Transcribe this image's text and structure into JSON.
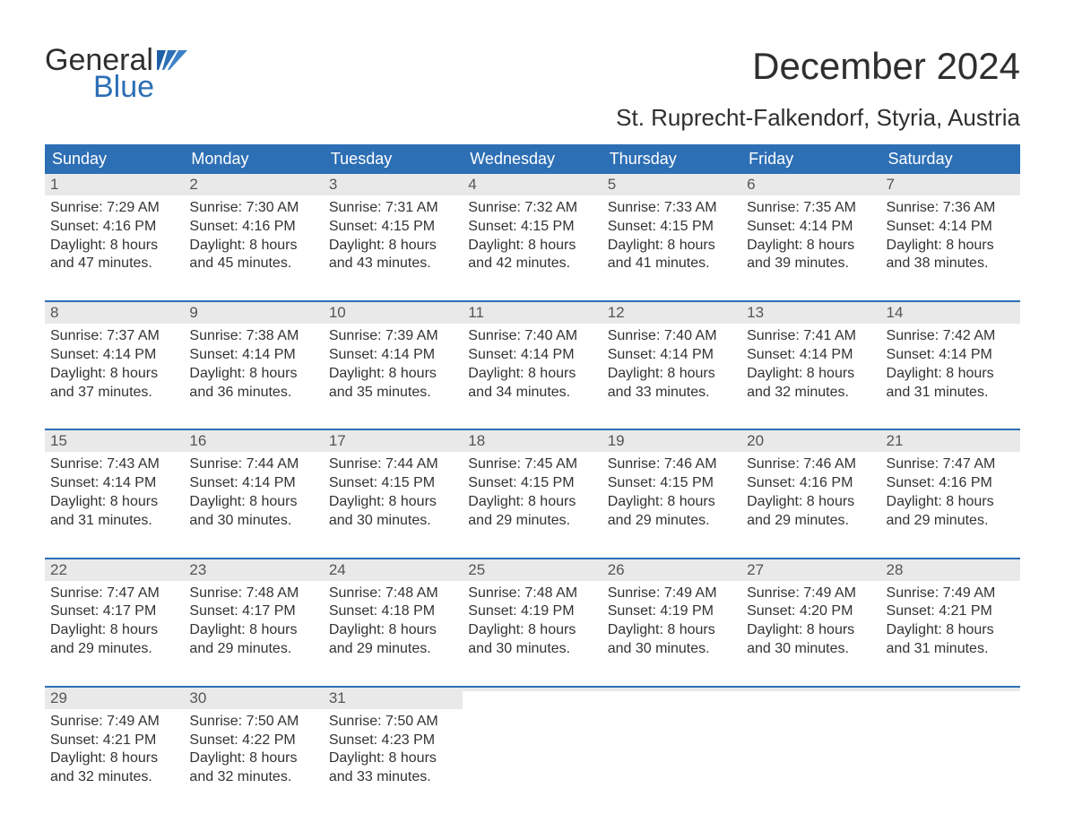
{
  "logo": {
    "text_top": "General",
    "text_bottom": "Blue"
  },
  "header": {
    "month_title": "December 2024",
    "location": "St. Ruprecht-Falkendorf, Styria, Austria"
  },
  "calendar": {
    "day_names": [
      "Sunday",
      "Monday",
      "Tuesday",
      "Wednesday",
      "Thursday",
      "Friday",
      "Saturday"
    ],
    "colors": {
      "header_bg": "#2d6fb5",
      "header_text": "#ffffff",
      "daynum_bg": "#e9e9e9",
      "daynum_text": "#555555",
      "body_text": "#333333",
      "rule": "#2d6fb5",
      "page_bg": "#ffffff"
    },
    "weeks": [
      [
        {
          "num": "1",
          "sunrise": "Sunrise: 7:29 AM",
          "sunset": "Sunset: 4:16 PM",
          "d1": "Daylight: 8 hours",
          "d2": "and 47 minutes."
        },
        {
          "num": "2",
          "sunrise": "Sunrise: 7:30 AM",
          "sunset": "Sunset: 4:16 PM",
          "d1": "Daylight: 8 hours",
          "d2": "and 45 minutes."
        },
        {
          "num": "3",
          "sunrise": "Sunrise: 7:31 AM",
          "sunset": "Sunset: 4:15 PM",
          "d1": "Daylight: 8 hours",
          "d2": "and 43 minutes."
        },
        {
          "num": "4",
          "sunrise": "Sunrise: 7:32 AM",
          "sunset": "Sunset: 4:15 PM",
          "d1": "Daylight: 8 hours",
          "d2": "and 42 minutes."
        },
        {
          "num": "5",
          "sunrise": "Sunrise: 7:33 AM",
          "sunset": "Sunset: 4:15 PM",
          "d1": "Daylight: 8 hours",
          "d2": "and 41 minutes."
        },
        {
          "num": "6",
          "sunrise": "Sunrise: 7:35 AM",
          "sunset": "Sunset: 4:14 PM",
          "d1": "Daylight: 8 hours",
          "d2": "and 39 minutes."
        },
        {
          "num": "7",
          "sunrise": "Sunrise: 7:36 AM",
          "sunset": "Sunset: 4:14 PM",
          "d1": "Daylight: 8 hours",
          "d2": "and 38 minutes."
        }
      ],
      [
        {
          "num": "8",
          "sunrise": "Sunrise: 7:37 AM",
          "sunset": "Sunset: 4:14 PM",
          "d1": "Daylight: 8 hours",
          "d2": "and 37 minutes."
        },
        {
          "num": "9",
          "sunrise": "Sunrise: 7:38 AM",
          "sunset": "Sunset: 4:14 PM",
          "d1": "Daylight: 8 hours",
          "d2": "and 36 minutes."
        },
        {
          "num": "10",
          "sunrise": "Sunrise: 7:39 AM",
          "sunset": "Sunset: 4:14 PM",
          "d1": "Daylight: 8 hours",
          "d2": "and 35 minutes."
        },
        {
          "num": "11",
          "sunrise": "Sunrise: 7:40 AM",
          "sunset": "Sunset: 4:14 PM",
          "d1": "Daylight: 8 hours",
          "d2": "and 34 minutes."
        },
        {
          "num": "12",
          "sunrise": "Sunrise: 7:40 AM",
          "sunset": "Sunset: 4:14 PM",
          "d1": "Daylight: 8 hours",
          "d2": "and 33 minutes."
        },
        {
          "num": "13",
          "sunrise": "Sunrise: 7:41 AM",
          "sunset": "Sunset: 4:14 PM",
          "d1": "Daylight: 8 hours",
          "d2": "and 32 minutes."
        },
        {
          "num": "14",
          "sunrise": "Sunrise: 7:42 AM",
          "sunset": "Sunset: 4:14 PM",
          "d1": "Daylight: 8 hours",
          "d2": "and 31 minutes."
        }
      ],
      [
        {
          "num": "15",
          "sunrise": "Sunrise: 7:43 AM",
          "sunset": "Sunset: 4:14 PM",
          "d1": "Daylight: 8 hours",
          "d2": "and 31 minutes."
        },
        {
          "num": "16",
          "sunrise": "Sunrise: 7:44 AM",
          "sunset": "Sunset: 4:14 PM",
          "d1": "Daylight: 8 hours",
          "d2": "and 30 minutes."
        },
        {
          "num": "17",
          "sunrise": "Sunrise: 7:44 AM",
          "sunset": "Sunset: 4:15 PM",
          "d1": "Daylight: 8 hours",
          "d2": "and 30 minutes."
        },
        {
          "num": "18",
          "sunrise": "Sunrise: 7:45 AM",
          "sunset": "Sunset: 4:15 PM",
          "d1": "Daylight: 8 hours",
          "d2": "and 29 minutes."
        },
        {
          "num": "19",
          "sunrise": "Sunrise: 7:46 AM",
          "sunset": "Sunset: 4:15 PM",
          "d1": "Daylight: 8 hours",
          "d2": "and 29 minutes."
        },
        {
          "num": "20",
          "sunrise": "Sunrise: 7:46 AM",
          "sunset": "Sunset: 4:16 PM",
          "d1": "Daylight: 8 hours",
          "d2": "and 29 minutes."
        },
        {
          "num": "21",
          "sunrise": "Sunrise: 7:47 AM",
          "sunset": "Sunset: 4:16 PM",
          "d1": "Daylight: 8 hours",
          "d2": "and 29 minutes."
        }
      ],
      [
        {
          "num": "22",
          "sunrise": "Sunrise: 7:47 AM",
          "sunset": "Sunset: 4:17 PM",
          "d1": "Daylight: 8 hours",
          "d2": "and 29 minutes."
        },
        {
          "num": "23",
          "sunrise": "Sunrise: 7:48 AM",
          "sunset": "Sunset: 4:17 PM",
          "d1": "Daylight: 8 hours",
          "d2": "and 29 minutes."
        },
        {
          "num": "24",
          "sunrise": "Sunrise: 7:48 AM",
          "sunset": "Sunset: 4:18 PM",
          "d1": "Daylight: 8 hours",
          "d2": "and 29 minutes."
        },
        {
          "num": "25",
          "sunrise": "Sunrise: 7:48 AM",
          "sunset": "Sunset: 4:19 PM",
          "d1": "Daylight: 8 hours",
          "d2": "and 30 minutes."
        },
        {
          "num": "26",
          "sunrise": "Sunrise: 7:49 AM",
          "sunset": "Sunset: 4:19 PM",
          "d1": "Daylight: 8 hours",
          "d2": "and 30 minutes."
        },
        {
          "num": "27",
          "sunrise": "Sunrise: 7:49 AM",
          "sunset": "Sunset: 4:20 PM",
          "d1": "Daylight: 8 hours",
          "d2": "and 30 minutes."
        },
        {
          "num": "28",
          "sunrise": "Sunrise: 7:49 AM",
          "sunset": "Sunset: 4:21 PM",
          "d1": "Daylight: 8 hours",
          "d2": "and 31 minutes."
        }
      ],
      [
        {
          "num": "29",
          "sunrise": "Sunrise: 7:49 AM",
          "sunset": "Sunset: 4:21 PM",
          "d1": "Daylight: 8 hours",
          "d2": "and 32 minutes."
        },
        {
          "num": "30",
          "sunrise": "Sunrise: 7:50 AM",
          "sunset": "Sunset: 4:22 PM",
          "d1": "Daylight: 8 hours",
          "d2": "and 32 minutes."
        },
        {
          "num": "31",
          "sunrise": "Sunrise: 7:50 AM",
          "sunset": "Sunset: 4:23 PM",
          "d1": "Daylight: 8 hours",
          "d2": "and 33 minutes."
        },
        {
          "empty": true
        },
        {
          "empty": true
        },
        {
          "empty": true
        },
        {
          "empty": true
        }
      ]
    ]
  }
}
